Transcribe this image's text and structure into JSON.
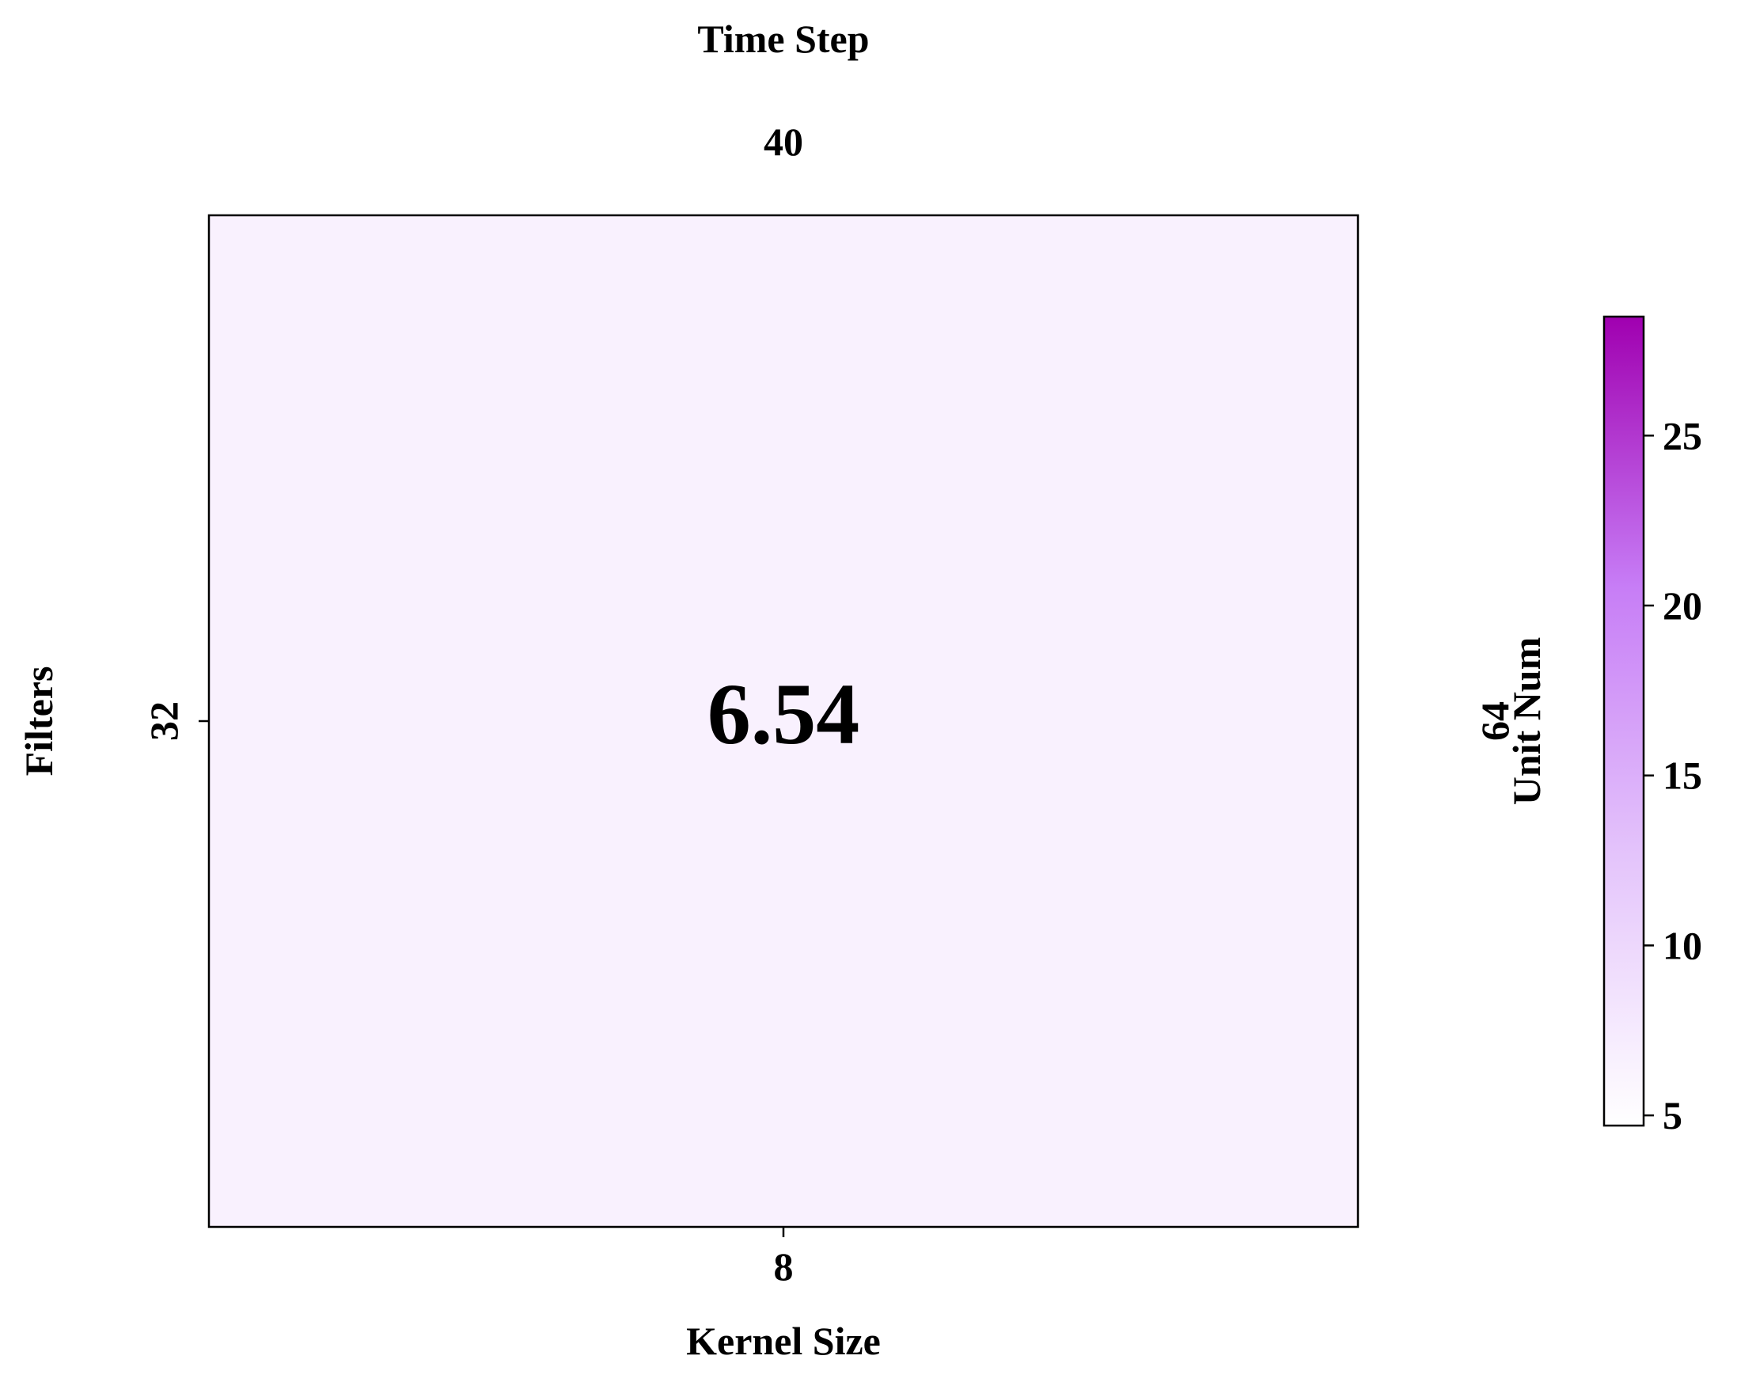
{
  "chart_data": {
    "type": "heatmap",
    "title": "",
    "xlabel": "Kernel Size",
    "ylabel": "Filters",
    "top_label": "Time Step",
    "right_label": "Unit Num",
    "x_tick_labels": [
      "8"
    ],
    "y_tick_labels": [
      "32"
    ],
    "top_tick_labels": [
      "40"
    ],
    "right_tick_labels": [
      "64"
    ],
    "cells": [
      {
        "row": 0,
        "col": 0,
        "value": 6.54,
        "label": "6.54"
      }
    ],
    "colorbar": {
      "min": 4.7,
      "max": 28.5,
      "ticks": [
        5,
        10,
        15,
        20,
        25
      ],
      "tick_labels": [
        "5",
        "10",
        "15",
        "20",
        "25"
      ],
      "colors": [
        "#ffffff",
        "#e4c4fb",
        "#c77df6",
        "#a000b0"
      ]
    },
    "colors": {
      "frame": "#000000",
      "text": "#000000"
    }
  }
}
